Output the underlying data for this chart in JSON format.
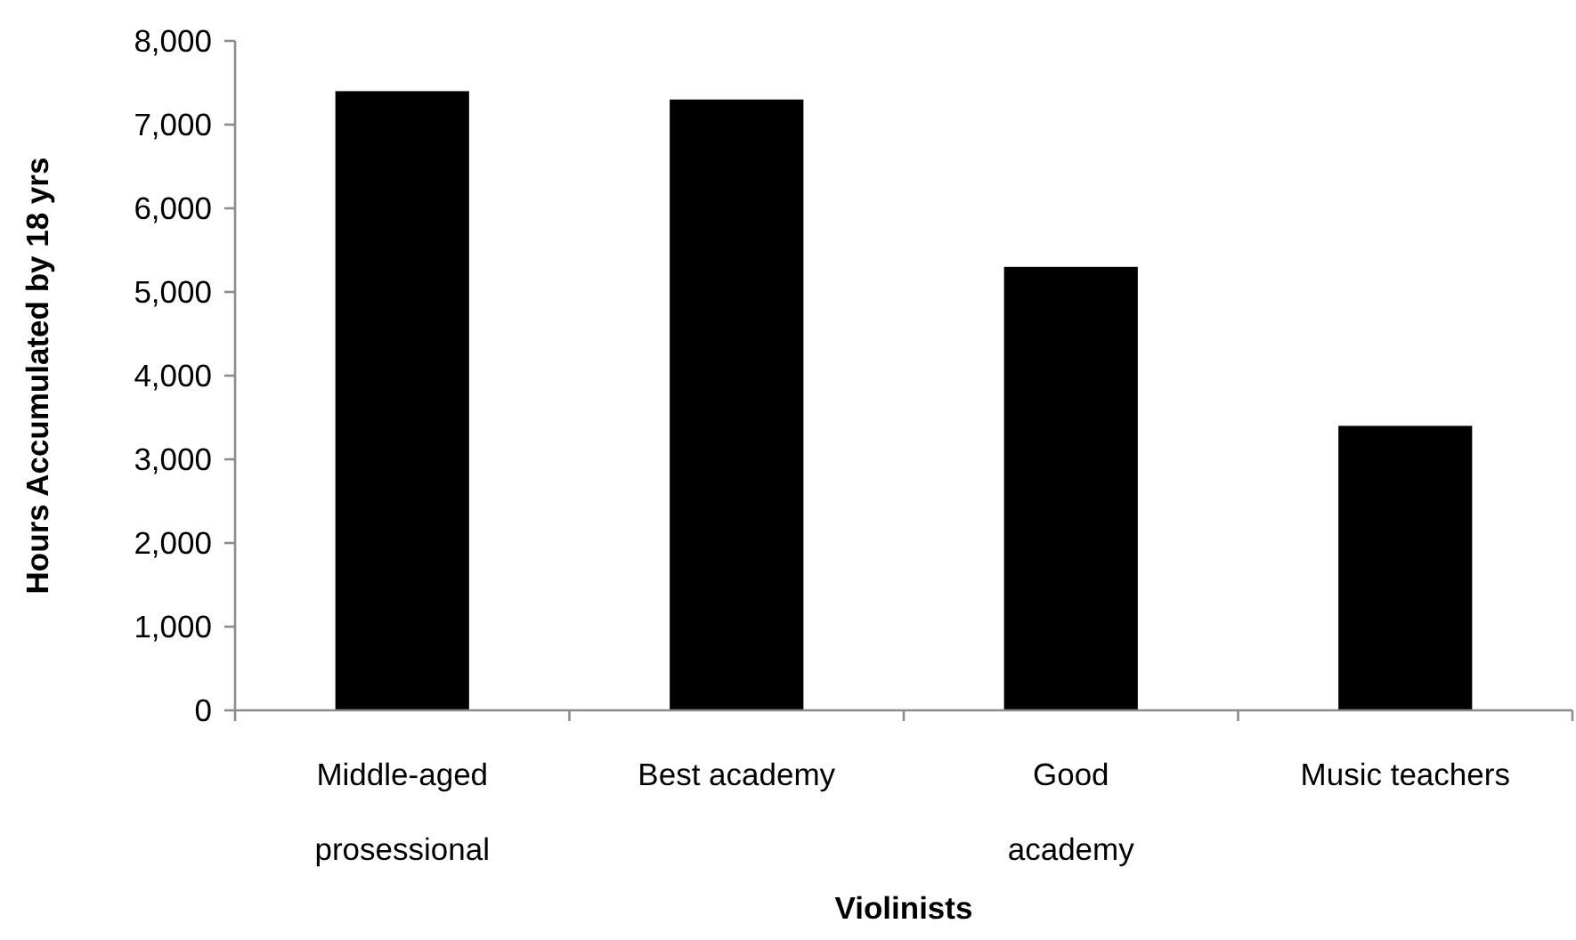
{
  "chart_data": {
    "type": "bar",
    "xlabel": "Violinists",
    "ylabel": "Hours Accumulated by 18 yrs",
    "categories": [
      "Middle-aged\nprosessional",
      "Best academy",
      "Good\nacademy",
      "Music teachers"
    ],
    "values": [
      7400,
      7300,
      5300,
      3400
    ],
    "color": "#000000",
    "ylim": [
      0,
      8000
    ],
    "yticks": [
      {
        "value": 0,
        "label": "0"
      },
      {
        "value": 1000,
        "label": "1,000"
      },
      {
        "value": 2000,
        "label": "2,000"
      },
      {
        "value": 3000,
        "label": "3,000"
      },
      {
        "value": 4000,
        "label": "4,000"
      },
      {
        "value": 5000,
        "label": "5,000"
      },
      {
        "value": 6000,
        "label": "6,000"
      },
      {
        "value": 7000,
        "label": "7,000"
      },
      {
        "value": 8000,
        "label": "8,000"
      }
    ],
    "grid": false
  }
}
